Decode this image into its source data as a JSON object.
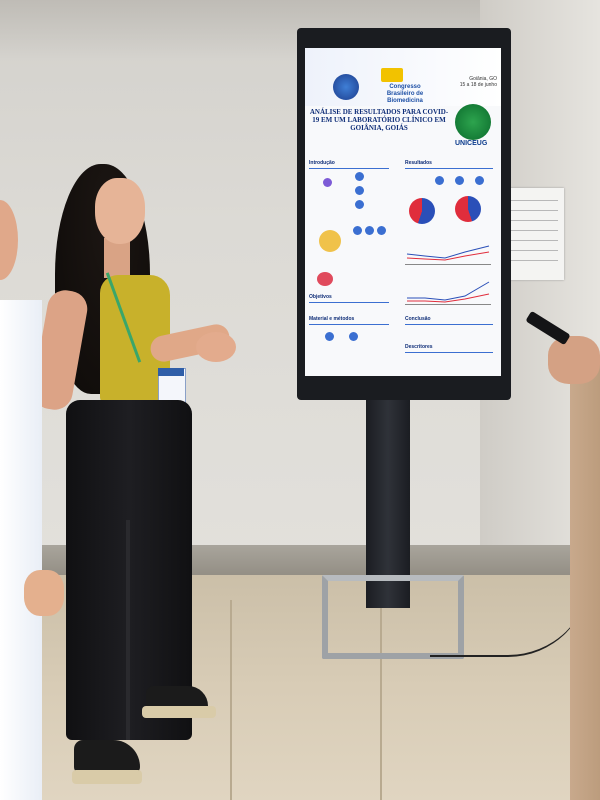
{
  "poster": {
    "event": "Congresso Brasileiro de Biomedicina",
    "edition": "XVII",
    "location": "Goiânia, GO",
    "dates": "15 a 18 de junho",
    "title": "ANÁLISE DE RESULTADOS PARA COVID-19 EM UM LABORATÓRIO CLÍNICO EM GOIÂNIA, GOIÁS",
    "institution": "UNICEUG",
    "sections": {
      "introduction": "Introdução",
      "results": "Resultados",
      "objectives": "Objetivos",
      "methods": "Material e métodos",
      "conclusion": "Conclusão",
      "descriptors": "Descritores"
    }
  },
  "colors": {
    "poster_blue": "#0f2e78",
    "pie_red": "#e02d3c",
    "pie_blue": "#2a4fb8",
    "badge_green": "#1d8b3d",
    "top_yellow": "#c8b12b"
  }
}
